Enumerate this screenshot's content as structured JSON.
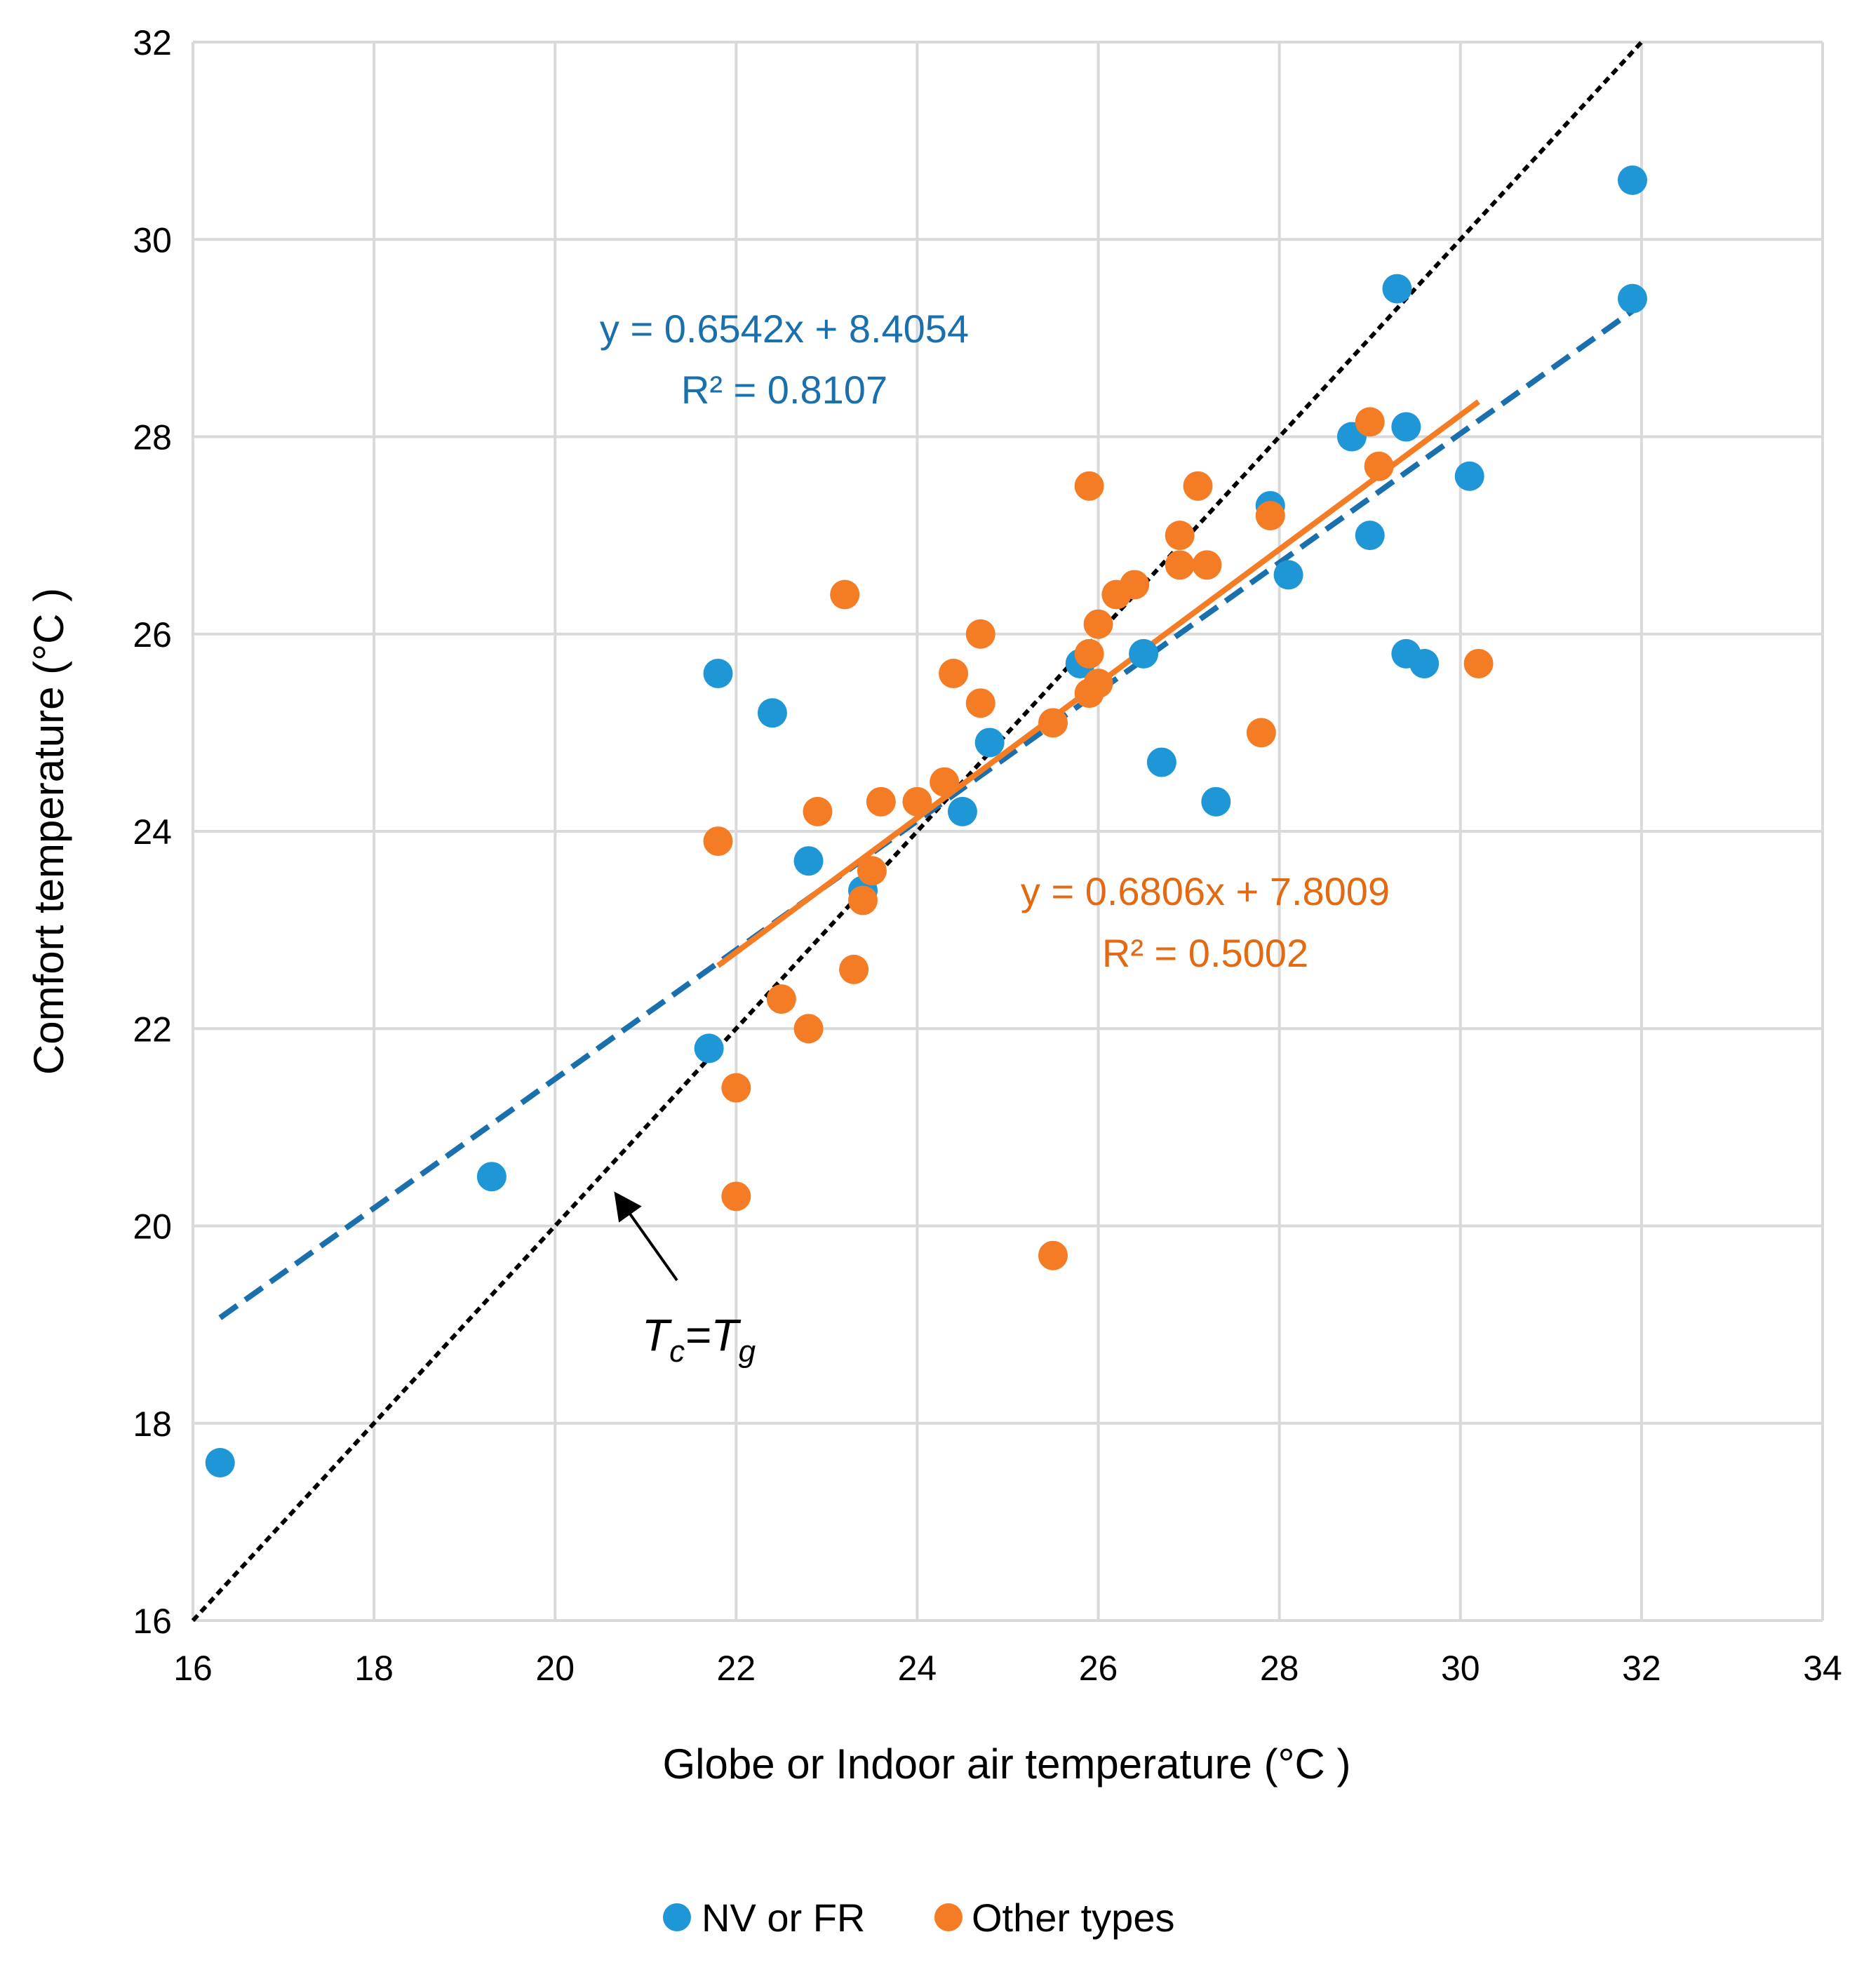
{
  "colors": {
    "nv_fr": "#1f96d6",
    "other": "#f47c24",
    "trend_blue": "#1a6fad",
    "trend_orange": "#f47c24",
    "eq_blue": "#1a6fad",
    "eq_orange": "#e36a12",
    "grid": "#d9d9d9",
    "identity": "#000000"
  },
  "chart_data": {
    "type": "scatter",
    "title": "",
    "xlabel": "Globe or Indoor air temperature (°C )",
    "ylabel": "Comfort temperature (°C )",
    "xlim": [
      16,
      34
    ],
    "ylim": [
      16,
      32
    ],
    "xticks": [
      "16",
      "18",
      "20",
      "22",
      "24",
      "26",
      "28",
      "30",
      "32",
      "34"
    ],
    "yticks": [
      "16",
      "18",
      "20",
      "22",
      "24",
      "26",
      "28",
      "30",
      "32"
    ],
    "grid": true,
    "legend_position": "bottom",
    "series": [
      {
        "name": "NV or FR",
        "color_key": "nv_fr",
        "points": [
          [
            16.3,
            17.6
          ],
          [
            19.3,
            20.5
          ],
          [
            21.7,
            21.8
          ],
          [
            21.8,
            25.6
          ],
          [
            22.4,
            25.2
          ],
          [
            22.8,
            23.7
          ],
          [
            23.4,
            23.4
          ],
          [
            24.5,
            24.2
          ],
          [
            24.8,
            24.9
          ],
          [
            25.8,
            25.7
          ],
          [
            26.5,
            25.8
          ],
          [
            26.7,
            24.7
          ],
          [
            27.3,
            24.3
          ],
          [
            27.9,
            27.3
          ],
          [
            28.1,
            26.6
          ],
          [
            28.8,
            28.0
          ],
          [
            29.0,
            27.0
          ],
          [
            29.3,
            29.5
          ],
          [
            29.4,
            28.1
          ],
          [
            29.4,
            25.8
          ],
          [
            29.6,
            25.7
          ],
          [
            30.1,
            27.6
          ],
          [
            31.9,
            30.6
          ],
          [
            31.9,
            29.4
          ]
        ],
        "trendline": {
          "slope": 0.6542,
          "intercept": 8.4054,
          "x_range": [
            16.3,
            31.9
          ],
          "style": "dashed",
          "equation": "y = 0.6542x + 8.4054",
          "r_squared": "R² = 0.8107"
        }
      },
      {
        "name": "Other types",
        "color_key": "other",
        "points": [
          [
            21.8,
            23.9
          ],
          [
            22.0,
            21.4
          ],
          [
            22.0,
            20.3
          ],
          [
            22.5,
            22.3
          ],
          [
            22.8,
            22.0
          ],
          [
            22.9,
            24.2
          ],
          [
            23.2,
            26.4
          ],
          [
            23.3,
            22.6
          ],
          [
            23.4,
            23.3
          ],
          [
            23.5,
            23.6
          ],
          [
            23.6,
            24.3
          ],
          [
            24.0,
            24.3
          ],
          [
            24.3,
            24.5
          ],
          [
            24.4,
            25.6
          ],
          [
            24.7,
            26.0
          ],
          [
            24.7,
            25.3
          ],
          [
            25.5,
            25.1
          ],
          [
            25.5,
            19.7
          ],
          [
            25.9,
            27.5
          ],
          [
            25.9,
            25.8
          ],
          [
            25.9,
            25.4
          ],
          [
            26.0,
            26.1
          ],
          [
            26.0,
            25.5
          ],
          [
            26.2,
            26.4
          ],
          [
            26.4,
            26.5
          ],
          [
            26.9,
            27.0
          ],
          [
            26.9,
            26.7
          ],
          [
            27.1,
            27.5
          ],
          [
            27.2,
            26.7
          ],
          [
            27.8,
            25.0
          ],
          [
            27.9,
            27.2
          ],
          [
            29.0,
            28.15
          ],
          [
            29.1,
            27.7
          ],
          [
            30.2,
            25.7
          ]
        ],
        "trendline": {
          "slope": 0.6806,
          "intercept": 7.8009,
          "x_range": [
            21.8,
            30.2
          ],
          "style": "solid",
          "equation": "y = 0.6806x + 7.8009",
          "r_squared": "R² = 0.5002"
        }
      }
    ],
    "identity_line": {
      "label_prefix": "T",
      "label_sub_left": "c",
      "label_equals": "=",
      "label_sub_right": "g",
      "arrow_target": [
        20.6,
        20.5
      ]
    }
  }
}
